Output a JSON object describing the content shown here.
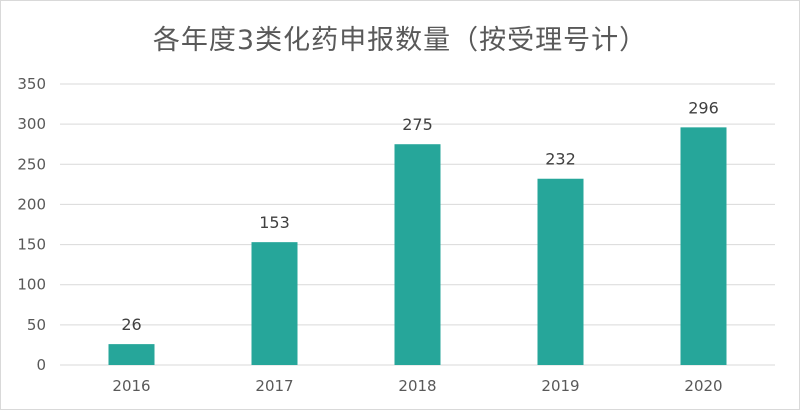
{
  "chart_data": {
    "type": "bar",
    "title": "各年度3类化药申报数量（按受理号计）",
    "categories": [
      "2016",
      "2017",
      "2018",
      "2019",
      "2020"
    ],
    "values": [
      26,
      153,
      275,
      232,
      296
    ],
    "data_labels": [
      "26",
      "153",
      "275",
      "232",
      "296"
    ],
    "xlabel": "",
    "ylabel": "",
    "ylim": [
      0,
      350
    ],
    "y_ticks": [
      "0",
      "50",
      "100",
      "150",
      "200",
      "250",
      "300",
      "350"
    ],
    "grid": "horizontal",
    "legend": "none",
    "bar_color": "#26a69a",
    "grid_color": "#d9d9d9"
  }
}
